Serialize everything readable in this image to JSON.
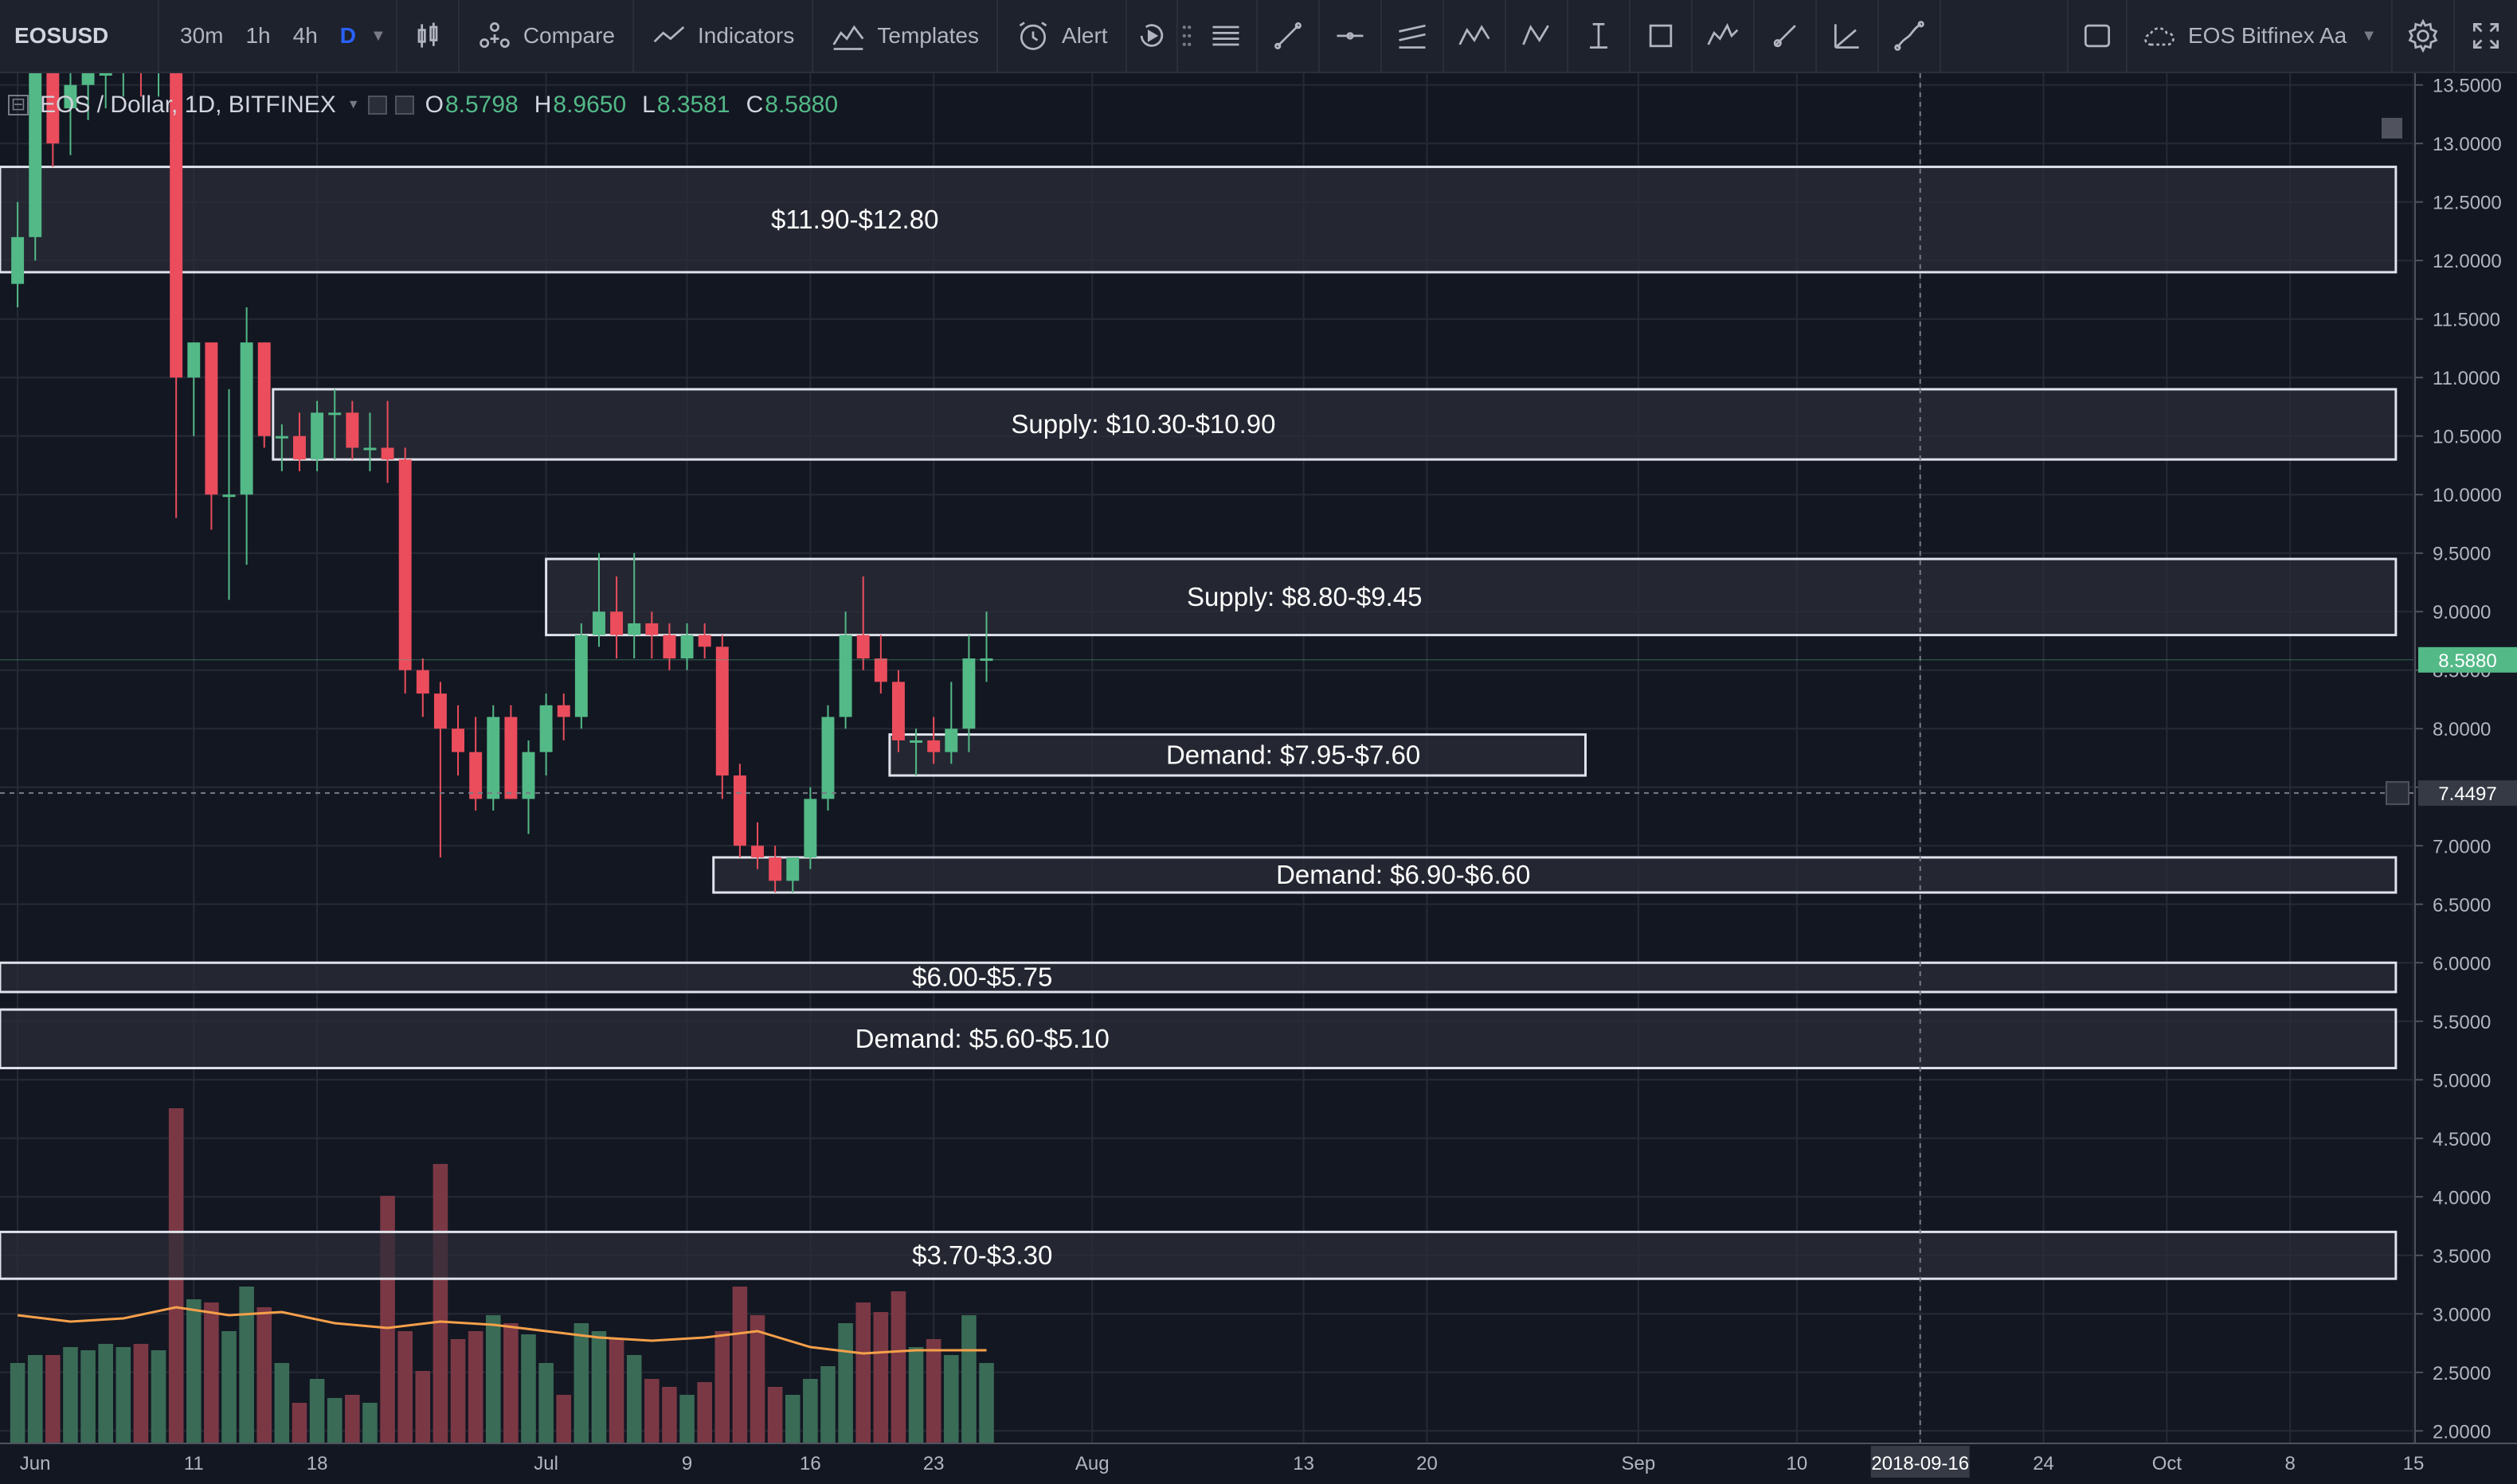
{
  "toolbar": {
    "symbol": "EOSUSD",
    "intervals": [
      "30m",
      "1h",
      "4h",
      "D"
    ],
    "active_interval": "D",
    "compare_label": "Compare",
    "indicators_label": "Indicators",
    "templates_label": "Templates",
    "alert_label": "Alert",
    "drawing_tools": [
      "horizontal-lines-icon",
      "trend-line-icon",
      "horizontal-ray-icon",
      "parallel-channel-icon",
      "xabcd-pattern-icon",
      "abcd-pattern-icon",
      "cursor-text-icon",
      "rectangle-icon",
      "elliott-wave-icon",
      "brush-icon",
      "fib-fan-icon",
      "path-icon"
    ],
    "layout_name": "EOS Bitfinex Aa"
  },
  "legend": {
    "title": "EOS / Dollar, 1D, BITFINEX",
    "open_label": "O",
    "open": "8.5798",
    "high_label": "H",
    "high": "8.9650",
    "low_label": "L",
    "low": "8.3581",
    "close_label": "C",
    "close": "8.5880"
  },
  "colors": {
    "background": "#131722",
    "up": "#53b987",
    "down": "#eb4d5c",
    "volume_up": "#3a6b56",
    "volume_down": "#7a3845",
    "ma": "#f5a04a",
    "zone_fill": "#2b2e39",
    "zone_border": "#e0e3eb",
    "grid": "#262a35",
    "axis_text": "#b2b5be",
    "price_badge": "#53b987"
  },
  "chart_data": {
    "type": "candlestick",
    "title": "EOS / Dollar, 1D, BITFINEX",
    "ylim": [
      1.9,
      13.6
    ],
    "y_ticks": [
      "13.5000",
      "13.0000",
      "12.5000",
      "12.0000",
      "11.5000",
      "11.0000",
      "10.5000",
      "10.0000",
      "9.5000",
      "9.0000",
      "8.5000",
      "8.0000",
      "7.5000",
      "7.0000",
      "6.5000",
      "6.0000",
      "5.5000",
      "5.0000",
      "4.5000",
      "4.0000",
      "3.5000",
      "3.0000",
      "2.5000",
      "2.0000"
    ],
    "x_day_range": [
      -1,
      136
    ],
    "x_ticks": [
      {
        "day": 0,
        "label": "Jun"
      },
      {
        "day": 10,
        "label": "11"
      },
      {
        "day": 17,
        "label": "18"
      },
      {
        "day": 30,
        "label": "Jul"
      },
      {
        "day": 38,
        "label": "9"
      },
      {
        "day": 45,
        "label": "16"
      },
      {
        "day": 52,
        "label": "23"
      },
      {
        "day": 61,
        "label": "Aug"
      },
      {
        "day": 73,
        "label": "13"
      },
      {
        "day": 80,
        "label": "20"
      },
      {
        "day": 92,
        "label": "Sep"
      },
      {
        "day": 101,
        "label": "10"
      },
      {
        "day": 108,
        "label": "2018-09-16",
        "highlight": true
      },
      {
        "day": 115,
        "label": "24"
      },
      {
        "day": 122,
        "label": "Oct"
      },
      {
        "day": 129,
        "label": "8"
      },
      {
        "day": 136,
        "label": "15"
      }
    ],
    "crosshair": {
      "price": 7.4497,
      "label": "7.4497",
      "date_day": 108
    },
    "last_price": {
      "value": 8.588,
      "label": "8.5880"
    },
    "candles": [
      {
        "day": 0,
        "o": 11.8,
        "h": 12.5,
        "l": 11.6,
        "c": 12.2,
        "v": 50
      },
      {
        "day": 1,
        "o": 12.2,
        "h": 13.7,
        "l": 12.0,
        "c": 13.6,
        "v": 55
      },
      {
        "day": 2,
        "o": 13.6,
        "h": 13.7,
        "l": 12.8,
        "c": 13.0,
        "v": 55
      },
      {
        "day": 3,
        "o": 13.3,
        "h": 13.7,
        "l": 12.9,
        "c": 13.5,
        "v": 60
      },
      {
        "day": 4,
        "o": 13.5,
        "h": 13.8,
        "l": 13.2,
        "c": 13.6,
        "v": 58
      },
      {
        "day": 5,
        "o": 13.6,
        "h": 13.9,
        "l": 13.3,
        "c": 13.6,
        "v": 62
      },
      {
        "day": 6,
        "o": 13.7,
        "h": 13.9,
        "l": 13.4,
        "c": 13.8,
        "v": 60
      },
      {
        "day": 7,
        "o": 13.8,
        "h": 13.9,
        "l": 13.4,
        "c": 13.6,
        "v": 62
      },
      {
        "day": 8,
        "o": 13.6,
        "h": 13.9,
        "l": 13.4,
        "c": 13.7,
        "v": 58
      },
      {
        "day": 9,
        "o": 13.7,
        "h": 13.9,
        "l": 9.8,
        "c": 11.0,
        "v": 210
      },
      {
        "day": 10,
        "o": 11.0,
        "h": 11.3,
        "l": 10.5,
        "c": 11.3,
        "v": 90
      },
      {
        "day": 11,
        "o": 11.3,
        "h": 11.3,
        "l": 9.7,
        "c": 10.0,
        "v": 88
      },
      {
        "day": 12,
        "o": 10.0,
        "h": 10.9,
        "l": 9.1,
        "c": 10.0,
        "v": 70
      },
      {
        "day": 13,
        "o": 10.0,
        "h": 11.6,
        "l": 9.4,
        "c": 11.3,
        "v": 98
      },
      {
        "day": 14,
        "o": 11.3,
        "h": 11.3,
        "l": 10.4,
        "c": 10.5,
        "v": 85
      },
      {
        "day": 15,
        "o": 10.5,
        "h": 10.6,
        "l": 10.2,
        "c": 10.5,
        "v": 50
      },
      {
        "day": 16,
        "o": 10.5,
        "h": 10.7,
        "l": 10.2,
        "c": 10.3,
        "v": 25
      },
      {
        "day": 17,
        "o": 10.3,
        "h": 10.8,
        "l": 10.2,
        "c": 10.7,
        "v": 40
      },
      {
        "day": 18,
        "o": 10.7,
        "h": 10.9,
        "l": 10.3,
        "c": 10.7,
        "v": 28
      },
      {
        "day": 19,
        "o": 10.7,
        "h": 10.8,
        "l": 10.3,
        "c": 10.4,
        "v": 30
      },
      {
        "day": 20,
        "o": 10.4,
        "h": 10.7,
        "l": 10.2,
        "c": 10.4,
        "v": 25
      },
      {
        "day": 21,
        "o": 10.4,
        "h": 10.8,
        "l": 10.1,
        "c": 10.3,
        "v": 155
      },
      {
        "day": 22,
        "o": 10.3,
        "h": 10.4,
        "l": 8.3,
        "c": 8.5,
        "v": 70
      },
      {
        "day": 23,
        "o": 8.5,
        "h": 8.6,
        "l": 8.1,
        "c": 8.3,
        "v": 45
      },
      {
        "day": 24,
        "o": 8.3,
        "h": 8.4,
        "l": 6.9,
        "c": 8.0,
        "v": 175
      },
      {
        "day": 25,
        "o": 8.0,
        "h": 8.2,
        "l": 7.6,
        "c": 7.8,
        "v": 65
      },
      {
        "day": 26,
        "o": 7.8,
        "h": 8.1,
        "l": 7.3,
        "c": 7.4,
        "v": 70
      },
      {
        "day": 27,
        "o": 7.4,
        "h": 8.2,
        "l": 7.3,
        "c": 8.1,
        "v": 80
      },
      {
        "day": 28,
        "o": 8.1,
        "h": 8.2,
        "l": 7.4,
        "c": 7.4,
        "v": 75
      },
      {
        "day": 29,
        "o": 7.4,
        "h": 7.9,
        "l": 7.1,
        "c": 7.8,
        "v": 68
      },
      {
        "day": 30,
        "o": 7.8,
        "h": 8.3,
        "l": 7.6,
        "c": 8.2,
        "v": 50
      },
      {
        "day": 31,
        "o": 8.2,
        "h": 8.3,
        "l": 7.9,
        "c": 8.1,
        "v": 30
      },
      {
        "day": 32,
        "o": 8.1,
        "h": 8.9,
        "l": 8.0,
        "c": 8.8,
        "v": 75
      },
      {
        "day": 33,
        "o": 8.8,
        "h": 9.5,
        "l": 8.7,
        "c": 9.0,
        "v": 70
      },
      {
        "day": 34,
        "o": 9.0,
        "h": 9.3,
        "l": 8.6,
        "c": 8.8,
        "v": 65
      },
      {
        "day": 35,
        "o": 8.8,
        "h": 9.5,
        "l": 8.6,
        "c": 8.9,
        "v": 55
      },
      {
        "day": 36,
        "o": 8.9,
        "h": 9.0,
        "l": 8.6,
        "c": 8.8,
        "v": 40
      },
      {
        "day": 37,
        "o": 8.8,
        "h": 8.9,
        "l": 8.5,
        "c": 8.6,
        "v": 35
      },
      {
        "day": 38,
        "o": 8.6,
        "h": 8.9,
        "l": 8.5,
        "c": 8.8,
        "v": 30
      },
      {
        "day": 39,
        "o": 8.8,
        "h": 8.9,
        "l": 8.6,
        "c": 8.7,
        "v": 38
      },
      {
        "day": 40,
        "o": 8.7,
        "h": 8.8,
        "l": 7.4,
        "c": 7.6,
        "v": 70
      },
      {
        "day": 41,
        "o": 7.6,
        "h": 7.7,
        "l": 6.9,
        "c": 7.0,
        "v": 98
      },
      {
        "day": 42,
        "o": 7.0,
        "h": 7.2,
        "l": 6.8,
        "c": 6.9,
        "v": 80
      },
      {
        "day": 43,
        "o": 6.9,
        "h": 7.0,
        "l": 6.6,
        "c": 6.7,
        "v": 35
      },
      {
        "day": 44,
        "o": 6.7,
        "h": 6.9,
        "l": 6.6,
        "c": 6.9,
        "v": 30
      },
      {
        "day": 45,
        "o": 6.9,
        "h": 7.5,
        "l": 6.8,
        "c": 7.4,
        "v": 40
      },
      {
        "day": 46,
        "o": 7.4,
        "h": 8.2,
        "l": 7.3,
        "c": 8.1,
        "v": 48
      },
      {
        "day": 47,
        "o": 8.1,
        "h": 9.0,
        "l": 8.0,
        "c": 8.8,
        "v": 75
      },
      {
        "day": 48,
        "o": 8.8,
        "h": 9.3,
        "l": 8.5,
        "c": 8.6,
        "v": 88
      },
      {
        "day": 49,
        "o": 8.6,
        "h": 8.8,
        "l": 8.3,
        "c": 8.4,
        "v": 82
      },
      {
        "day": 50,
        "o": 8.4,
        "h": 8.5,
        "l": 7.8,
        "c": 7.9,
        "v": 95
      },
      {
        "day": 51,
        "o": 7.9,
        "h": 8.0,
        "l": 7.6,
        "c": 7.9,
        "v": 60
      },
      {
        "day": 52,
        "o": 7.9,
        "h": 8.1,
        "l": 7.7,
        "c": 7.8,
        "v": 65
      },
      {
        "day": 53,
        "o": 7.8,
        "h": 8.4,
        "l": 7.7,
        "c": 8.0,
        "v": 55
      },
      {
        "day": 54,
        "o": 8.0,
        "h": 8.8,
        "l": 7.8,
        "c": 8.6,
        "v": 80
      },
      {
        "day": 55,
        "o": 8.6,
        "h": 9.0,
        "l": 8.4,
        "c": 8.6,
        "v": 50
      }
    ],
    "volume_ma": [
      {
        "day": 0,
        "v": 80
      },
      {
        "day": 3,
        "v": 76
      },
      {
        "day": 6,
        "v": 78
      },
      {
        "day": 9,
        "v": 85
      },
      {
        "day": 12,
        "v": 80
      },
      {
        "day": 15,
        "v": 82
      },
      {
        "day": 18,
        "v": 75
      },
      {
        "day": 21,
        "v": 72
      },
      {
        "day": 24,
        "v": 76
      },
      {
        "day": 27,
        "v": 74
      },
      {
        "day": 30,
        "v": 70
      },
      {
        "day": 33,
        "v": 66
      },
      {
        "day": 36,
        "v": 64
      },
      {
        "day": 39,
        "v": 66
      },
      {
        "day": 42,
        "v": 70
      },
      {
        "day": 45,
        "v": 60
      },
      {
        "day": 48,
        "v": 56
      },
      {
        "day": 51,
        "v": 58
      },
      {
        "day": 55,
        "v": 58
      }
    ],
    "zones": [
      {
        "label": "$11.90-$12.80",
        "top": 12.8,
        "bottom": 11.9,
        "start_day": -1,
        "end_day": 135
      },
      {
        "label": "Supply: $10.30-$10.90",
        "top": 10.9,
        "bottom": 10.3,
        "start_day": 14.5,
        "end_day": 135
      },
      {
        "label": "Supply: $8.80-$9.45",
        "top": 9.45,
        "bottom": 8.8,
        "start_day": 30,
        "end_day": 135
      },
      {
        "label": "Demand: $7.95-$7.60",
        "top": 7.95,
        "bottom": 7.6,
        "start_day": 49.5,
        "end_day": 89
      },
      {
        "label": "Demand: $6.90-$6.60",
        "top": 6.9,
        "bottom": 6.6,
        "start_day": 39.5,
        "end_day": 135
      },
      {
        "label": "$6.00-$5.75",
        "top": 6.0,
        "bottom": 5.75,
        "start_day": -1,
        "end_day": 135
      },
      {
        "label": "Demand: $5.60-$5.10",
        "top": 5.6,
        "bottom": 5.1,
        "start_day": -1,
        "end_day": 135
      },
      {
        "label": "$3.70-$3.30",
        "top": 3.7,
        "bottom": 3.3,
        "start_day": -1,
        "end_day": 135
      }
    ]
  }
}
